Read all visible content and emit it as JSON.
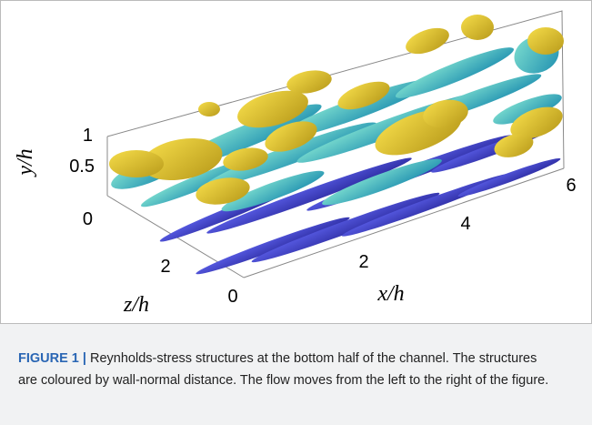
{
  "figure": {
    "y_axis": {
      "label": "y/h",
      "ticks": [
        "1",
        "0.5",
        "0"
      ]
    },
    "z_axis": {
      "label": "z/h",
      "ticks": [
        "2",
        "0"
      ]
    },
    "x_axis": {
      "label": "x/h",
      "ticks": [
        "2",
        "4",
        "6"
      ]
    }
  },
  "caption": {
    "label": "FIGURE 1 |",
    "text": "Reynholds-stress structures at the bottom half of the channel. The structures are coloured by wall-normal distance. The flow moves from the left to the right of the figure."
  }
}
